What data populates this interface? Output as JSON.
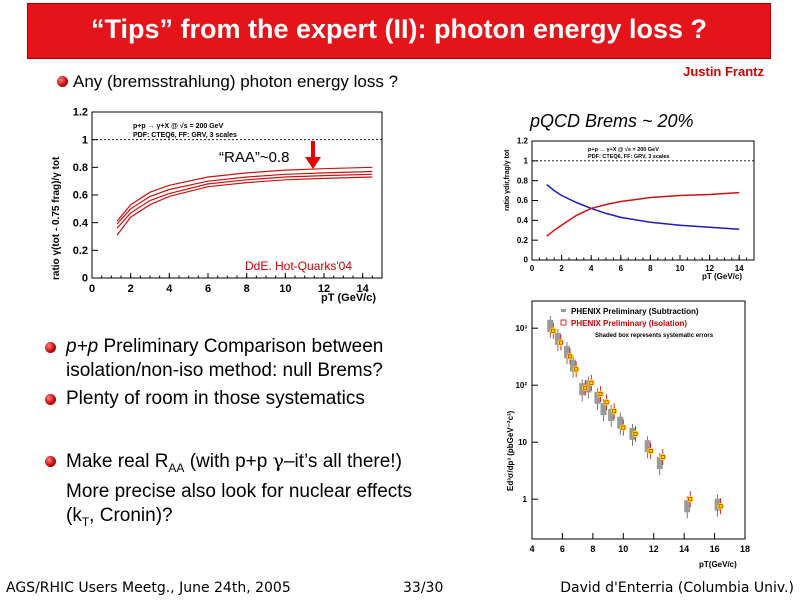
{
  "slide": {
    "title": "“Tips” from the expert (II): photon energy loss ?",
    "author": "Justin Frantz",
    "bullet1": "Any (bremsstrahlung) photon energy loss ?",
    "brems_label": "pQCD Brems ~ 20%",
    "bullet2_line1_italic": "p+p",
    "bullet2_line1_rest": " Preliminary Comparison between",
    "bullet2_line2": "isolation/non-iso method:  null Brems?",
    "bullet3": "Plenty of room in those systematics",
    "bullet4_line1_a": "Make real R",
    "bullet4_line1_sub": "AA",
    "bullet4_line1_b": " (with p+p ",
    "bullet4_line1_gamma": "γ",
    "bullet4_line1_c": "–it’s all there!)",
    "bullet4_line2": "More precise also look for nuclear effects",
    "bullet4_line3_a": "(k",
    "bullet4_line3_sub": "T",
    "bullet4_line3_b": ", Cronin)?",
    "footer_left": "AGS/RHIC Users Meetg., June 24th, 2005",
    "footer_page": "33/30",
    "footer_right": "David d'Enterria (Columbia Univ.)"
  },
  "chart_data": [
    {
      "type": "line",
      "ylabel": "ratio γ(tot - 0.75 frag)/γ tot",
      "xlabel": "pT (GeV/c)",
      "legend": [
        "p+p → γ+X @ √s = 200 GeV",
        "PDF: CTEQ6, FF: GRV, 3 scales"
      ],
      "annotation": "“RAA”~0.8",
      "credit": "DdE. Hot-Quarks'04",
      "xlim": [
        0,
        15
      ],
      "ylim": [
        0,
        1.2
      ],
      "xticks": [
        "0",
        "2",
        "4",
        "6",
        "8",
        "10",
        "12",
        "14"
      ],
      "yticks": [
        "0",
        "0.2",
        "0.4",
        "0.6",
        "0.8",
        "1",
        "1.2"
      ],
      "reference_line_y": 1,
      "series": [
        {
          "x": [
            1.3,
            2,
            3,
            4,
            6,
            8,
            10,
            12,
            14.5
          ],
          "values": [
            0.41,
            0.53,
            0.62,
            0.67,
            0.73,
            0.76,
            0.78,
            0.79,
            0.8
          ]
        },
        {
          "x": [
            1.3,
            2,
            3,
            4,
            6,
            8,
            10,
            12,
            14.5
          ],
          "values": [
            0.39,
            0.5,
            0.59,
            0.64,
            0.7,
            0.73,
            0.75,
            0.76,
            0.77
          ]
        },
        {
          "x": [
            1.3,
            2,
            3,
            4,
            6,
            8,
            10,
            12,
            14.5
          ],
          "values": [
            0.36,
            0.47,
            0.56,
            0.61,
            0.68,
            0.71,
            0.73,
            0.74,
            0.75
          ]
        },
        {
          "x": [
            1.3,
            2,
            3,
            4,
            6,
            8,
            10,
            12,
            14.5
          ],
          "values": [
            0.31,
            0.44,
            0.53,
            0.59,
            0.66,
            0.69,
            0.71,
            0.72,
            0.73
          ]
        }
      ]
    },
    {
      "type": "line",
      "ylabel": "ratio γdir,frag/γ tot",
      "xlabel": "pT (GeV/c)",
      "legend": [
        "p+p → γ+X @ √s = 200 GeV",
        "PDF: CTEQ6, FF: GRV, 3 scales"
      ],
      "xlim": [
        0,
        15
      ],
      "ylim": [
        0,
        1.2
      ],
      "xticks": [
        "0",
        "2",
        "4",
        "6",
        "8",
        "10",
        "12",
        "14"
      ],
      "yticks": [
        "0",
        "0.2",
        "0.4",
        "0.6",
        "0.8",
        "1",
        "1.2"
      ],
      "reference_line_y": 1,
      "series": [
        {
          "color": "#1b1bbf",
          "x": [
            1,
            1.5,
            2,
            3,
            4,
            5,
            6,
            8,
            10,
            12,
            14
          ],
          "values": [
            0.76,
            0.7,
            0.65,
            0.58,
            0.52,
            0.47,
            0.43,
            0.38,
            0.35,
            0.33,
            0.31
          ]
        },
        {
          "color": "#cc1111",
          "x": [
            1,
            1.5,
            2,
            3,
            4,
            5,
            6,
            8,
            10,
            12,
            14
          ],
          "values": [
            0.24,
            0.3,
            0.35,
            0.45,
            0.52,
            0.56,
            0.59,
            0.63,
            0.65,
            0.66,
            0.68
          ]
        }
      ]
    },
    {
      "type": "scatter",
      "ylabel": "Ed³σ/dp³ (pbGeV⁻²c³)",
      "xlabel": "pT(GeV/c)",
      "legend": [
        "PHENIX Preliminary (Subtraction)",
        "PHENIX Preliminary (Isolation)"
      ],
      "note": "Shaded box represents systematic errors",
      "xlim": [
        4,
        18
      ],
      "ylog": true,
      "ylim": [
        0.2,
        3000
      ],
      "xticks": [
        "4",
        "6",
        "8",
        "10",
        "12",
        "14",
        "16",
        "18"
      ],
      "yticks": [
        {
          "label": "1",
          "v": 1
        },
        {
          "label": "10",
          "v": 10
        },
        {
          "label": "10²",
          "v": 100
        },
        {
          "label": "10³",
          "v": 1000
        }
      ],
      "series": [
        {
          "name": "PHENIX Preliminary (Subtraction)",
          "x": [
            5.2,
            5.7,
            6.3,
            6.7,
            7.3,
            7.7,
            8.3,
            8.7,
            9.2,
            9.8,
            10.6,
            11.6,
            12.4,
            14.2,
            16.2
          ],
          "values": [
            1100,
            650,
            380,
            220,
            85,
            95,
            60,
            38,
            30,
            22,
            14,
            8.5,
            4.3,
            0.75,
            0.8
          ]
        },
        {
          "name": "PHENIX Preliminary (Isolation)",
          "x": [
            5.4,
            5.9,
            6.5,
            6.9,
            7.5,
            7.9,
            8.5,
            8.9,
            9.4,
            10.0,
            10.8,
            11.8,
            12.6,
            14.4,
            16.4
          ],
          "values": [
            900,
            560,
            320,
            190,
            90,
            110,
            70,
            50,
            35,
            18,
            14,
            7,
            5.5,
            1.0,
            0.75
          ]
        }
      ]
    }
  ]
}
